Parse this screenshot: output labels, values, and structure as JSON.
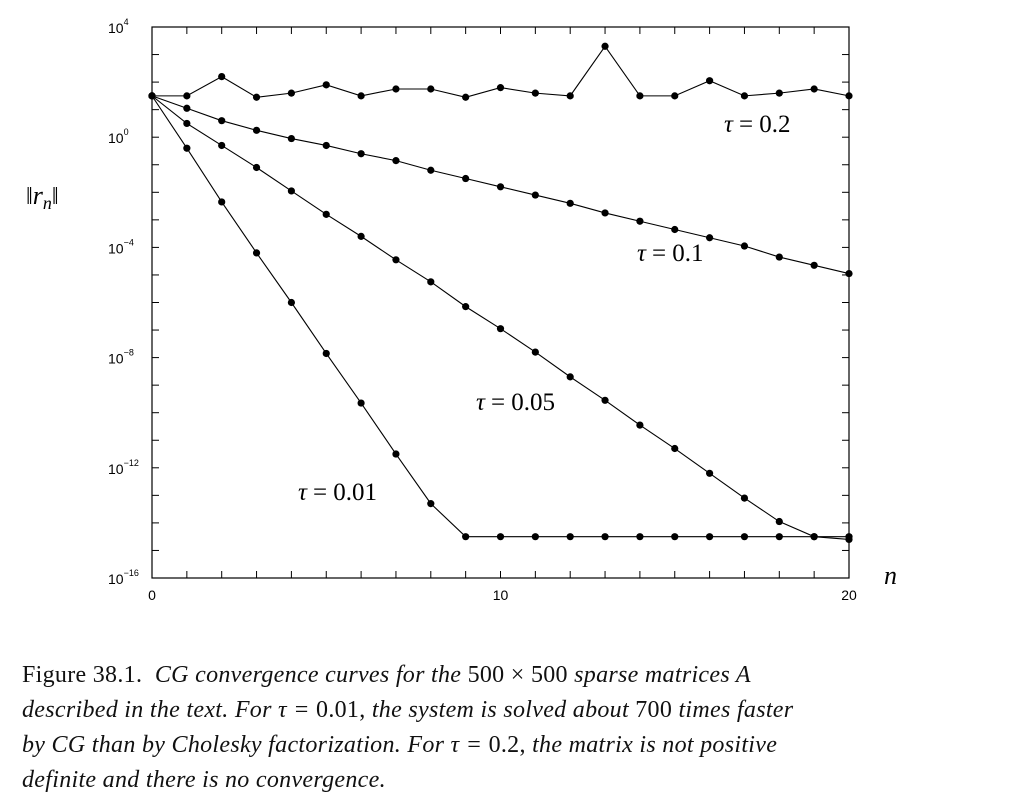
{
  "chart_data": {
    "type": "line",
    "title": "",
    "xlabel": "n",
    "ylabel": "||r_n||",
    "xlim": [
      0,
      20
    ],
    "ylim_log10": [
      -16,
      4
    ],
    "x_ticks": [
      0,
      10,
      20
    ],
    "y_ticks_log10": [
      4,
      0,
      -4,
      -8,
      -12,
      -16
    ],
    "y_tick_base": "10",
    "y_tick_exponents": [
      "4",
      "0",
      "−4",
      "−8",
      "−12",
      "−16"
    ],
    "x_tick_labels": [
      "0",
      "10",
      "20"
    ],
    "y_scale": "log",
    "grid": false,
    "series": [
      {
        "name": "τ = 0.2",
        "tau_symbol": "τ",
        "tau_value": "= 0.2",
        "x": [
          0,
          1,
          2,
          3,
          4,
          5,
          6,
          7,
          8,
          9,
          10,
          11,
          12,
          13,
          14,
          15,
          16,
          17,
          18,
          19,
          20
        ],
        "log10_values": [
          1.5,
          1.5,
          2.2,
          1.45,
          1.6,
          1.9,
          1.5,
          1.75,
          1.75,
          1.45,
          1.8,
          1.6,
          1.5,
          3.3,
          1.5,
          1.5,
          2.05,
          1.5,
          1.6,
          1.75,
          1.5
        ]
      },
      {
        "name": "τ = 0.1",
        "tau_symbol": "τ",
        "tau_value": "= 0.1",
        "x": [
          0,
          1,
          2,
          3,
          4,
          5,
          6,
          7,
          8,
          9,
          10,
          11,
          12,
          13,
          14,
          15,
          16,
          17,
          18,
          19,
          20
        ],
        "log10_values": [
          1.5,
          1.05,
          0.6,
          0.25,
          -0.05,
          -0.3,
          -0.6,
          -0.85,
          -1.2,
          -1.5,
          -1.8,
          -2.1,
          -2.4,
          -2.75,
          -3.05,
          -3.35,
          -3.65,
          -3.95,
          -4.35,
          -4.65,
          -4.95
        ]
      },
      {
        "name": "τ = 0.05",
        "tau_symbol": "τ",
        "tau_value": "= 0.05",
        "x": [
          0,
          1,
          2,
          3,
          4,
          5,
          6,
          7,
          8,
          9,
          10,
          11,
          12,
          13,
          14,
          15,
          16,
          17,
          18,
          19,
          20
        ],
        "log10_values": [
          1.5,
          0.5,
          -0.3,
          -1.1,
          -1.95,
          -2.8,
          -3.6,
          -4.45,
          -5.25,
          -6.15,
          -6.95,
          -7.8,
          -8.7,
          -9.55,
          -10.45,
          -11.3,
          -12.2,
          -13.1,
          -13.95,
          -14.5,
          -14.6
        ]
      },
      {
        "name": "τ = 0.01",
        "tau_symbol": "τ",
        "tau_value": "= 0.01",
        "x": [
          0,
          1,
          2,
          3,
          4,
          5,
          6,
          7,
          8,
          9,
          10,
          11,
          12,
          13,
          14,
          15,
          16,
          17,
          18,
          19,
          20
        ],
        "log10_values": [
          1.5,
          -0.4,
          -2.35,
          -4.2,
          -6.0,
          -7.85,
          -9.65,
          -11.5,
          -13.3,
          -14.5,
          -14.5,
          -14.5,
          -14.5,
          -14.5,
          -14.5,
          -14.5,
          -14.5,
          -14.5,
          -14.5,
          -14.5,
          -14.5
        ]
      }
    ]
  },
  "caption": {
    "figure_number": "Figure 38.1.",
    "line1_a": "CG convergence curves for the",
    "line1_num1": "500",
    "line1_times": "×",
    "line1_num2": "500",
    "line1_b": "sparse matrices A",
    "line2_a": "described in the text. For τ =",
    "line2_val": "0.01,",
    "line2_b": "the system is solved about",
    "line2_num": "700",
    "line2_c": "times faster",
    "line3_a": "by CG than by Cholesky factorization. For τ =",
    "line3_val": "0.2,",
    "line3_b": "the matrix is not positive",
    "line4": "definite and there is no convergence."
  }
}
